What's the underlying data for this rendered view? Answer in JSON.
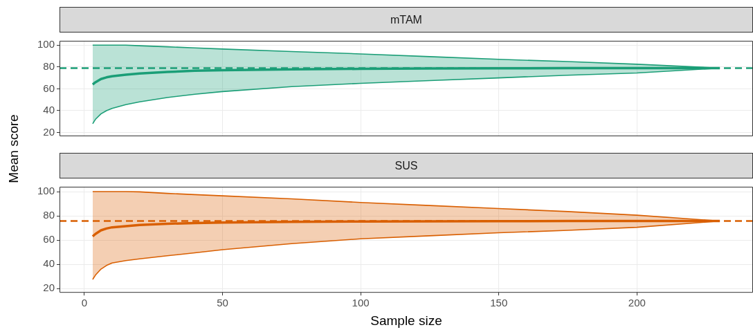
{
  "chart_data": [
    {
      "type": "line",
      "title": "mTAM",
      "ylabel": "Mean score",
      "x": [
        3,
        4,
        6,
        8,
        10,
        15,
        20,
        30,
        40,
        50,
        75,
        100,
        125,
        150,
        175,
        200,
        230
      ],
      "xlim": [
        -9,
        242
      ],
      "xticks": [
        0,
        50,
        100,
        150,
        200
      ],
      "ylim": [
        16.5,
        104
      ],
      "yticks": [
        20,
        40,
        60,
        80,
        100
      ],
      "grid": true,
      "tick_labels": "y",
      "series": [
        {
          "color": "#1b9e77",
          "values": [
            28,
            32,
            37,
            40,
            42,
            45.5,
            48,
            52,
            55,
            57.5,
            62,
            65,
            67.5,
            70,
            72.5,
            74.5,
            79
          ]
        },
        {
          "color": "#1b9e77",
          "values": [
            100,
            100,
            100,
            100,
            100,
            100,
            99.5,
            98.5,
            97.5,
            96.5,
            94.2,
            92,
            89.5,
            87,
            85,
            82.5,
            79
          ]
        },
        {
          "color": "#1b9e77",
          "values": [
            64,
            66,
            69,
            70.5,
            71.5,
            73,
            74,
            75.5,
            76.5,
            77,
            77.8,
            78.3,
            78.6,
            78.8,
            78.9,
            79,
            79
          ],
          "lower": [
            28,
            32,
            37,
            40,
            42,
            45.5,
            48,
            52,
            55,
            57.5,
            62,
            65,
            67.5,
            70,
            72.5,
            74.5,
            79
          ],
          "upper": [
            100,
            100,
            100,
            100,
            100,
            100,
            99.5,
            98.5,
            97.5,
            96.5,
            94.2,
            92,
            89.5,
            87,
            85,
            82.5,
            79
          ]
        }
      ],
      "ref_lines": [
        {
          "axis": "y",
          "value": 79,
          "color": "#1b9e77",
          "line_style": "dashed"
        }
      ]
    },
    {
      "type": "line",
      "title": "SUS",
      "xlabel": "Sample size",
      "x": [
        3,
        4,
        6,
        8,
        10,
        15,
        20,
        30,
        40,
        50,
        75,
        100,
        125,
        150,
        175,
        200,
        230
      ],
      "xlim": [
        -9,
        242
      ],
      "xticks": [
        0,
        50,
        100,
        150,
        200
      ],
      "ylim": [
        16.5,
        104
      ],
      "yticks": [
        20,
        40,
        60,
        80,
        100
      ],
      "grid": true,
      "series": [
        {
          "color": "#d95f02",
          "values": [
            27.5,
            31,
            36,
            39,
            41,
            43,
            44.5,
            47,
            49.5,
            52,
            57,
            61,
            63.5,
            66,
            68,
            70.5,
            75.7
          ]
        },
        {
          "color": "#d95f02",
          "values": [
            100,
            100,
            100,
            100,
            100,
            100,
            99.8,
            98.5,
            97.5,
            96.5,
            94,
            91,
            88.5,
            86,
            83.5,
            80.5,
            75.7
          ]
        },
        {
          "color": "#d95f02",
          "values": [
            63,
            65,
            68,
            69.5,
            70.5,
            71.5,
            72.5,
            73.5,
            74,
            74.5,
            75,
            75.3,
            75.5,
            75.6,
            75.7,
            75.7,
            75.7
          ],
          "lower": [
            27.5,
            31,
            36,
            39,
            41,
            43,
            44.5,
            47,
            49.5,
            52,
            57,
            61,
            63.5,
            66,
            68,
            70.5,
            75.7
          ],
          "upper": [
            100,
            100,
            100,
            100,
            100,
            100,
            99.8,
            98.5,
            97.5,
            96.5,
            94,
            91,
            88.5,
            86,
            83.5,
            80.5,
            75.7
          ]
        }
      ],
      "ref_lines": [
        {
          "axis": "y",
          "value": 75.7,
          "color": "#d95f02",
          "line_style": "dashed"
        }
      ]
    }
  ]
}
